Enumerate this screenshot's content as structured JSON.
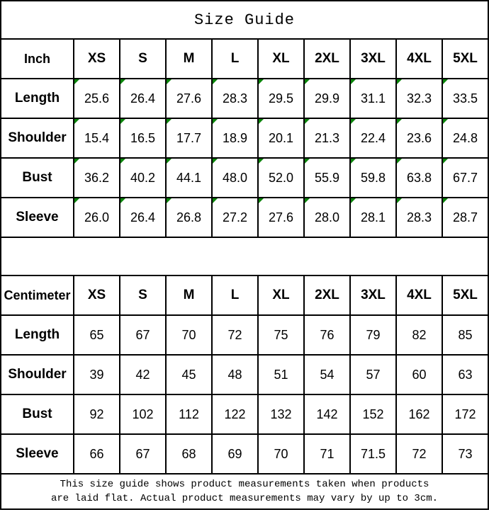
{
  "title": "Size Guide",
  "colors": {
    "border_black": "#000000",
    "corner_marker_green": "#0a840a"
  },
  "footer": {
    "line1": "This size guide shows product measurements taken when products",
    "line2": "are laid flat. Actual product measurements may vary by up to 3cm."
  },
  "chart_data": [
    {
      "type": "table",
      "unit_label": "Inch",
      "sizes": [
        "XS",
        "S",
        "M",
        "L",
        "XL",
        "2XL",
        "3XL",
        "4XL",
        "5XL"
      ],
      "corner_markers": true,
      "rows": [
        {
          "label": "Length",
          "values": [
            "25.6",
            "26.4",
            "27.6",
            "28.3",
            "29.5",
            "29.9",
            "31.1",
            "32.3",
            "33.5"
          ]
        },
        {
          "label": "Shoulder",
          "values": [
            "15.4",
            "16.5",
            "17.7",
            "18.9",
            "20.1",
            "21.3",
            "22.4",
            "23.6",
            "24.8"
          ]
        },
        {
          "label": "Bust",
          "values": [
            "36.2",
            "40.2",
            "44.1",
            "48.0",
            "52.0",
            "55.9",
            "59.8",
            "63.8",
            "67.7"
          ]
        },
        {
          "label": "Sleeve",
          "values": [
            "26.0",
            "26.4",
            "26.8",
            "27.2",
            "27.6",
            "28.0",
            "28.1",
            "28.3",
            "28.7"
          ]
        }
      ]
    },
    {
      "type": "table",
      "unit_label": "Centimeter",
      "sizes": [
        "XS",
        "S",
        "M",
        "L",
        "XL",
        "2XL",
        "3XL",
        "4XL",
        "5XL"
      ],
      "corner_markers": false,
      "rows": [
        {
          "label": "Length",
          "values": [
            "65",
            "67",
            "70",
            "72",
            "75",
            "76",
            "79",
            "82",
            "85"
          ]
        },
        {
          "label": "Shoulder",
          "values": [
            "39",
            "42",
            "45",
            "48",
            "51",
            "54",
            "57",
            "60",
            "63"
          ]
        },
        {
          "label": "Bust",
          "values": [
            "92",
            "102",
            "112",
            "122",
            "132",
            "142",
            "152",
            "162",
            "172"
          ]
        },
        {
          "label": "Sleeve",
          "values": [
            "66",
            "67",
            "68",
            "69",
            "70",
            "71",
            "71.5",
            "72",
            "73"
          ]
        }
      ]
    }
  ]
}
